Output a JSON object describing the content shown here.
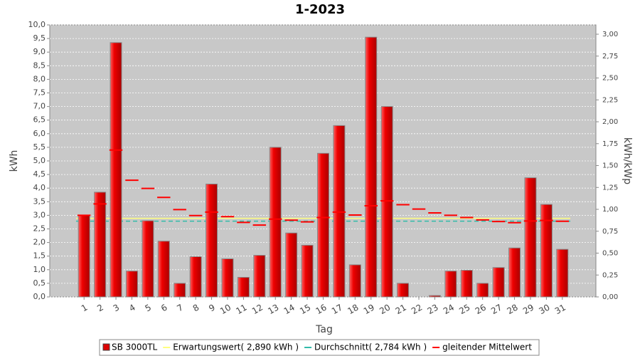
{
  "chart_data": {
    "type": "bar",
    "title": "1-2023",
    "x_label": "Tag",
    "y_label": "kWh",
    "y2_label": "kWh/kWp",
    "categories": [
      "1",
      "2",
      "3",
      "4",
      "5",
      "6",
      "7",
      "8",
      "9",
      "10",
      "11",
      "12",
      "13",
      "14",
      "15",
      "16",
      "17",
      "18",
      "19",
      "20",
      "21",
      "22",
      "23",
      "24",
      "25",
      "26",
      "27",
      "28",
      "29",
      "30",
      "31"
    ],
    "series": [
      {
        "name": "SB 3000TL",
        "color": "#dd0000",
        "values": [
          3.0,
          3.85,
          9.35,
          0.95,
          2.8,
          2.05,
          0.5,
          1.48,
          4.15,
          1.4,
          0.72,
          1.53,
          5.5,
          2.35,
          1.9,
          5.28,
          6.3,
          1.18,
          9.55,
          7.0,
          0.5,
          0,
          0.05,
          0.95,
          0.98,
          0.5,
          1.08,
          1.8,
          4.38,
          3.4,
          1.75
        ]
      },
      {
        "name": "gleitender Mittelwert",
        "color": "#ff0000",
        "style": "dash",
        "values": [
          3.0,
          3.42,
          5.4,
          4.29,
          3.99,
          3.66,
          3.21,
          2.99,
          3.12,
          2.95,
          2.74,
          2.64,
          2.86,
          2.82,
          2.76,
          2.92,
          3.12,
          3.01,
          3.35,
          3.53,
          3.39,
          3.23,
          3.09,
          3.0,
          2.92,
          2.83,
          2.77,
          2.73,
          2.79,
          2.81,
          2.78
        ]
      }
    ],
    "reference_lines": [
      {
        "name": "Erwartungswert( 2,890 kWh )",
        "value": 2.89,
        "color": "#ffff80"
      },
      {
        "name": "Durchschnitt( 2,784 kWh )",
        "value": 2.784,
        "color": "#33bbaa"
      }
    ],
    "ylim": [
      0,
      10
    ],
    "yticks": [
      {
        "value": 0,
        "label": "0,0"
      },
      {
        "value": 0.5,
        "label": "0,5"
      },
      {
        "value": 1,
        "label": "1,0"
      },
      {
        "value": 1.5,
        "label": "1,5"
      },
      {
        "value": 2,
        "label": "2,0"
      },
      {
        "value": 2.5,
        "label": "2,5"
      },
      {
        "value": 3,
        "label": "3,0"
      },
      {
        "value": 3.5,
        "label": "3,5"
      },
      {
        "value": 4,
        "label": "4,0"
      },
      {
        "value": 4.5,
        "label": "4,5"
      },
      {
        "value": 5,
        "label": "5,0"
      },
      {
        "value": 5.5,
        "label": "5,5"
      },
      {
        "value": 6,
        "label": "6,0"
      },
      {
        "value": 6.5,
        "label": "6,5"
      },
      {
        "value": 7,
        "label": "7,0"
      },
      {
        "value": 7.5,
        "label": "7,5"
      },
      {
        "value": 8,
        "label": "8,0"
      },
      {
        "value": 8.5,
        "label": "8,5"
      },
      {
        "value": 9,
        "label": "9,0"
      },
      {
        "value": 9.5,
        "label": "9,5"
      },
      {
        "value": 10,
        "label": "10,0"
      }
    ],
    "y2lim": [
      0,
      3.106
    ],
    "y2ticks": [
      {
        "value": 0,
        "label": "0,00"
      },
      {
        "value": 0.25,
        "label": "0,25"
      },
      {
        "value": 0.5,
        "label": "0,50"
      },
      {
        "value": 0.75,
        "label": "0,75"
      },
      {
        "value": 1,
        "label": "1,00"
      },
      {
        "value": 1.25,
        "label": "1,25"
      },
      {
        "value": 1.5,
        "label": "1,50"
      },
      {
        "value": 1.75,
        "label": "1,75"
      },
      {
        "value": 2,
        "label": "2,00"
      },
      {
        "value": 2.25,
        "label": "2,25"
      },
      {
        "value": 2.5,
        "label": "2,50"
      },
      {
        "value": 2.75,
        "label": "2,75"
      },
      {
        "value": 3,
        "label": "3,00"
      }
    ],
    "grid": true,
    "legend": "bottom"
  }
}
